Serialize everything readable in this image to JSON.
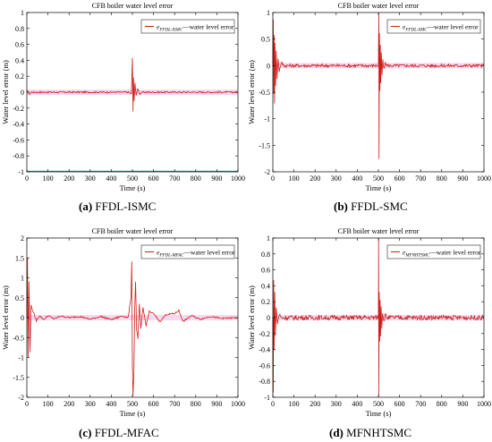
{
  "figure": {
    "captions": [
      {
        "letter": "(a)",
        "text": "FFDL-ISMC"
      },
      {
        "letter": "(b)",
        "text": "FFDL-SMC"
      },
      {
        "letter": "(c)",
        "text": "FFDL-MFAC"
      },
      {
        "letter": "(d)",
        "text": "MFNHTSMC"
      }
    ]
  },
  "colors": {
    "series_red": "#cc1f1a",
    "error_band": "#f4b8e6",
    "axis": "#000000",
    "ref_line_a": "#2a9d8f"
  },
  "chart_data": [
    {
      "type": "line",
      "title": "CFB boiler water level error",
      "xlabel": "Time  (s)",
      "ylabel": "Water level error  (m)",
      "xlim": [
        0,
        1000
      ],
      "ylim": [
        -1,
        1
      ],
      "xticks": [
        0,
        100,
        200,
        300,
        400,
        500,
        600,
        700,
        800,
        900,
        1000
      ],
      "yticks": [
        -1,
        -0.8,
        -0.6,
        -0.4,
        -0.2,
        0,
        0.2,
        0.4,
        0.6,
        0.8,
        1
      ],
      "ytick_labels": [
        "-1",
        "-0.8",
        "-0.6",
        "-0.4",
        "-0.2",
        "0",
        "0.2",
        "0.4",
        "0.6",
        "0.8",
        "1"
      ],
      "legend": {
        "symbol": "e",
        "subscript": "FFDL-ISMC",
        "text": "water level error",
        "position": "top-right"
      },
      "series": [
        {
          "x": [
            0,
            5,
            10,
            20,
            480,
            495,
            500,
            503,
            505,
            508,
            512,
            518,
            525,
            535,
            550,
            1000
          ],
          "y": [
            0,
            0.02,
            -0.03,
            0,
            0,
            -0.02,
            0.43,
            -0.25,
            0.18,
            -0.1,
            0.12,
            -0.05,
            0.05,
            -0.02,
            0,
            0
          ]
        }
      ],
      "noise_amplitude": 0.01
    },
    {
      "type": "line",
      "title": "CFB boiler water level error",
      "xlabel": "Time  (s)",
      "ylabel": "Water level error  (m)",
      "xlim": [
        0,
        1000
      ],
      "ylim": [
        -2,
        1
      ],
      "xticks": [
        0,
        100,
        200,
        300,
        400,
        500,
        600,
        700,
        800,
        900,
        1000
      ],
      "yticks": [
        -2,
        -1.5,
        -1,
        -0.5,
        0,
        0.5,
        1
      ],
      "ytick_labels": [
        "-2",
        "-1.5",
        "-1",
        "-0.5",
        "0",
        "0.5",
        "1"
      ],
      "legend": {
        "symbol": "e",
        "subscript": "FFDL-SMC",
        "text": "water level error",
        "position": "top-right"
      },
      "series": [
        {
          "x": [
            0,
            2,
            4,
            6,
            8,
            10,
            13,
            16,
            20,
            25,
            30,
            40,
            55,
            500,
            502,
            503,
            505,
            507,
            509,
            511,
            514,
            517,
            521,
            526,
            532,
            545,
            1000
          ],
          "y": [
            0,
            0.85,
            -0.55,
            0.6,
            -0.7,
            0.45,
            -0.4,
            0.3,
            -0.25,
            0.15,
            -0.1,
            0.05,
            0,
            0,
            1.0,
            -1.75,
            0.6,
            -0.5,
            0.4,
            -0.35,
            0.25,
            -0.2,
            0.12,
            -0.08,
            0.04,
            0,
            0
          ]
        }
      ],
      "noise_amplitude": 0.03
    },
    {
      "type": "line",
      "title": "CFB boiler water level error",
      "xlabel": "Time  (s)",
      "ylabel": "Water level error  (m)",
      "xlim": [
        0,
        1000
      ],
      "ylim": [
        -2,
        2
      ],
      "xticks": [
        0,
        100,
        200,
        300,
        400,
        500,
        600,
        700,
        800,
        900,
        1000
      ],
      "yticks": [
        -2,
        -1.5,
        -1,
        -0.5,
        0,
        0.5,
        1,
        1.5,
        2
      ],
      "ytick_labels": [
        "-2",
        "-1.5",
        "-1",
        "-0.5",
        "0",
        "0.5",
        "1",
        "1.5",
        "2"
      ],
      "legend": {
        "symbol": "e",
        "subscript": "FFDL-MFAC",
        "text": "water level error",
        "position": "top-right"
      },
      "series": [
        {
          "x": [
            0,
            3,
            6,
            10,
            15,
            20,
            30,
            45,
            60,
            80,
            100,
            130,
            160,
            200,
            250,
            300,
            350,
            400,
            450,
            480,
            493,
            497,
            500,
            503,
            507,
            511,
            515,
            520,
            526,
            533,
            540,
            550,
            565,
            580,
            600,
            630,
            660,
            700,
            720,
            740,
            780,
            820,
            870,
            920,
            1000
          ],
          "y": [
            0,
            1.5,
            -1.0,
            0.9,
            -0.85,
            0.3,
            0.15,
            -0.08,
            0.05,
            -0.05,
            0.05,
            -0.03,
            0.04,
            0,
            0.03,
            -0.04,
            0.03,
            -0.05,
            0.04,
            0,
            0.5,
            1.42,
            -1.15,
            -1.95,
            -1.4,
            0.25,
            0.9,
            -0.3,
            -0.55,
            0.35,
            -0.3,
            0.25,
            -0.2,
            0.15,
            0.1,
            -0.1,
            0.08,
            0.1,
            0.18,
            -0.1,
            0.05,
            -0.04,
            0.03,
            -0.02,
            0
          ]
        }
      ],
      "noise_amplitude": 0.02
    },
    {
      "type": "line",
      "title": "CFB boiler water level error",
      "xlabel": "Time  (s)",
      "ylabel": "Water level error  (m)",
      "xlim": [
        0,
        1000
      ],
      "ylim": [
        -1,
        1
      ],
      "xticks": [
        0,
        100,
        200,
        300,
        400,
        500,
        600,
        700,
        800,
        900,
        1000
      ],
      "yticks": [
        -1,
        -0.8,
        -0.6,
        -0.4,
        -0.2,
        0,
        0.2,
        0.4,
        0.6,
        0.8,
        1
      ],
      "ytick_labels": [
        "-1",
        "-0.8",
        "-0.6",
        "-0.4",
        "-0.2",
        "0",
        "0.2",
        "0.4",
        "0.6",
        "0.8",
        "1"
      ],
      "legend": {
        "symbol": "e",
        "subscript": "MFNHTSMC",
        "text": "water level error",
        "position": "top-right"
      },
      "series": [
        {
          "x": [
            0,
            2,
            4,
            6,
            9,
            12,
            16,
            22,
            30,
            40,
            500,
            501,
            502,
            504,
            506,
            508,
            510,
            513,
            516,
            520,
            525,
            532,
            540,
            1000
          ],
          "y": [
            0,
            -0.95,
            0.5,
            -0.4,
            0.3,
            -0.2,
            0.12,
            -0.07,
            0.04,
            0,
            0,
            1.0,
            -1.0,
            0.35,
            -0.3,
            0.25,
            -0.22,
            0.15,
            -0.12,
            0.08,
            -0.05,
            0.03,
            0,
            0
          ]
        }
      ],
      "noise_amplitude": 0.03
    }
  ]
}
